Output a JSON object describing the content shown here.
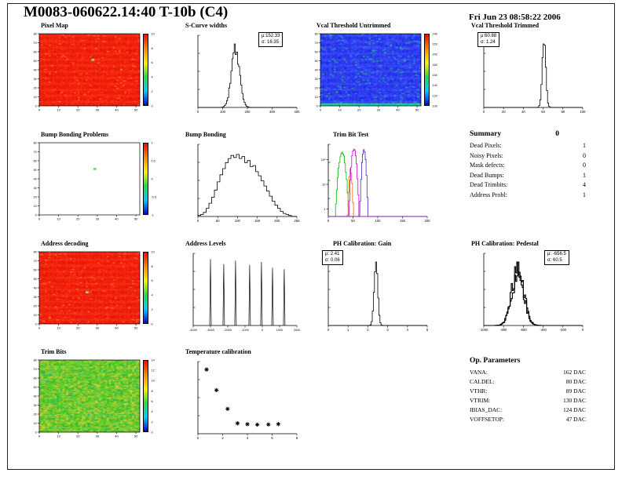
{
  "page": {
    "title": "M0083-060622.14:40 T-10b (C4)",
    "datetime": "Fri Jun 23 08:58:22 2006"
  },
  "summary": {
    "title": "Summary",
    "grade": "0",
    "rows": [
      {
        "label": "Dead Pixels:",
        "value": "1"
      },
      {
        "label": "Noisy Pixels:",
        "value": "0"
      },
      {
        "label": "Mask defects:",
        "value": "0"
      },
      {
        "label": "Dead Bumps:",
        "value": "1"
      },
      {
        "label": "Dead Trimbits:",
        "value": "4"
      },
      {
        "label": "Address Probl:",
        "value": "1"
      }
    ]
  },
  "op_parameters": {
    "title": "Op. Parameters",
    "rows": [
      {
        "label": "VANA:",
        "value": "162 DAC"
      },
      {
        "label": "CALDEL:",
        "value": "80 DAC"
      },
      {
        "label": "VTHR:",
        "value": "89 DAC"
      },
      {
        "label": "VTRIM:",
        "value": "130 DAC"
      },
      {
        "label": "IBIAS_DAC:",
        "value": "124 DAC"
      },
      {
        "label": "VOFFSETOP:",
        "value": "47 DAC"
      }
    ]
  },
  "chart_data": [
    {
      "id": "pixel-map",
      "type": "heatmap",
      "title": "Pixel Map",
      "grid": [
        52,
        80
      ],
      "x_ticks": [
        0,
        10,
        20,
        30,
        40,
        50
      ],
      "y_ticks": [
        0,
        10,
        20,
        30,
        40,
        50,
        60,
        70,
        80
      ],
      "palette": [
        {
          "color": "#f21b06",
          "w": 0.55
        },
        {
          "color": "#e41504",
          "w": 0.25
        },
        {
          "color": "#fb2d0a",
          "w": 0.18
        },
        {
          "color": "#ff7733",
          "w": 0.02
        }
      ],
      "defects": [
        {
          "col": 27,
          "row": 28,
          "color": "#88ffbb"
        }
      ],
      "colorbar": {
        "gradient": [
          "#ff0000",
          "#ff8800",
          "#ffee00",
          "#22dd44",
          "#00ccff",
          "#0000e0"
        ],
        "labels": [
          "0",
          "2",
          "4",
          "6",
          "8",
          "10"
        ]
      }
    },
    {
      "id": "scurve-widths",
      "type": "hist",
      "title": "S-Curve widths",
      "x_range": [
        0,
        400
      ],
      "x_ticks": [
        0,
        100,
        200,
        300,
        400
      ],
      "gauss": {
        "mean": 152.33,
        "sigma": 16.35
      },
      "stats": {
        "lines": [
          "μ:152.33",
          "σ: 16.35"
        ],
        "pos": "right"
      }
    },
    {
      "id": "vcal-untrimmed",
      "type": "heatmap",
      "title": "Vcal Threshold Untrimmed",
      "grid": [
        52,
        80
      ],
      "x_ticks": [
        0,
        10,
        20,
        30,
        40,
        50
      ],
      "y_ticks": [
        0,
        10,
        20,
        30,
        40,
        50,
        60,
        70,
        80
      ],
      "palette": [
        {
          "color": "#2a3af2",
          "w": 0.5
        },
        {
          "color": "#1c2ce4",
          "w": 0.28
        },
        {
          "color": "#3c4cfa",
          "w": 0.17
        },
        {
          "color": "#22bb66",
          "w": 0.03
        },
        {
          "color": "#18a8c8",
          "w": 0.02
        }
      ],
      "bottom_band": {
        "rows": 3,
        "palette": [
          {
            "color": "#17c9a4",
            "w": 0.5
          },
          {
            "color": "#2ad86e",
            "w": 0.3
          },
          {
            "color": "#1b9ede",
            "w": 0.2
          }
        ]
      },
      "colorbar": {
        "gradient": [
          "#ff0000",
          "#ff8800",
          "#ffee00",
          "#22dd44",
          "#00ccff",
          "#0000e0"
        ],
        "labels": [
          "100",
          "120",
          "140",
          "160",
          "180",
          "200",
          "220",
          "240"
        ]
      }
    },
    {
      "id": "vcal-trimmed",
      "type": "hist",
      "title": "Vcal Threshold Trimmed",
      "x_range": [
        0,
        100
      ],
      "x_ticks": [
        0,
        20,
        40,
        60,
        80,
        100
      ],
      "gauss": {
        "mean": 60.88,
        "sigma": 1.24
      },
      "stats": {
        "lines": [
          "μ:60.88",
          "σ: 1.24"
        ],
        "pos": "left"
      }
    },
    {
      "id": "bump-problems",
      "type": "heatmap",
      "title": "Bump Bonding Problems",
      "grid": [
        52,
        80
      ],
      "x_ticks": [
        0,
        10,
        20,
        30,
        40,
        50
      ],
      "y_ticks": [
        0,
        10,
        20,
        30,
        40,
        50,
        60,
        70,
        80
      ],
      "palette": [
        {
          "color": "#ffffff",
          "w": 1
        }
      ],
      "defects": [
        {
          "col": 28,
          "row": 28,
          "color": "#44cc44"
        }
      ],
      "colorbar": {
        "gradient": [
          "#ff0000",
          "#ff8800",
          "#ffee00",
          "#22dd44",
          "#00ccff",
          "#0000e0"
        ],
        "labels": [
          "-1",
          "-0.5",
          "0",
          "0.5",
          "1"
        ]
      }
    },
    {
      "id": "bump-bonding",
      "type": "hist-bins",
      "title": "Bump Bonding",
      "x_range": [
        0,
        250
      ],
      "x_ticks": [
        0,
        50,
        100,
        150,
        200,
        250
      ],
      "bins": [
        1,
        2,
        4,
        8,
        13,
        19,
        26,
        34,
        41,
        47,
        53,
        57,
        60,
        58,
        61,
        57,
        59,
        53,
        55,
        49,
        50,
        44,
        40,
        35,
        30,
        25,
        20,
        15,
        11,
        8,
        5,
        3,
        2,
        1,
        0,
        0
      ]
    },
    {
      "id": "trimbit-test",
      "type": "hist-multi-log",
      "title": "Trim Bit Test",
      "x_range": [
        0,
        200
      ],
      "x_ticks": [
        0,
        50,
        100,
        150,
        200
      ],
      "y_decades": [
        "1",
        "10",
        "10²"
      ],
      "series": [
        {
          "color": "#00bb00",
          "mean": 28,
          "sigma": 4.0,
          "amp": 200
        },
        {
          "color": "#ee6600",
          "mean": 45,
          "sigma": 2.0,
          "amp": 40
        },
        {
          "color": "#cc00cc",
          "mean": 52,
          "sigma": 3.0,
          "amp": 300
        },
        {
          "color": "#5522bb",
          "mean": 72,
          "sigma": 2.4,
          "amp": 260
        }
      ]
    },
    {
      "id": "address-decoding",
      "type": "heatmap",
      "title": "Address decoding",
      "grid": [
        52,
        80
      ],
      "x_ticks": [
        0,
        10,
        20,
        30,
        40,
        50
      ],
      "y_ticks": [
        0,
        10,
        20,
        30,
        40,
        50,
        60,
        70,
        80
      ],
      "palette": [
        {
          "color": "#f21b06",
          "w": 0.55
        },
        {
          "color": "#e41504",
          "w": 0.25
        },
        {
          "color": "#fb2d0a",
          "w": 0.18
        },
        {
          "color": "#ff7733",
          "w": 0.02
        }
      ],
      "defects": [
        {
          "col": 24,
          "row": 44,
          "color": "#88ffbb"
        }
      ],
      "colorbar": {
        "gradient": [
          "#ff0000",
          "#ff8800",
          "#ffee00",
          "#22dd44",
          "#00ccff",
          "#0000e0"
        ],
        "labels": [
          "0",
          "2",
          "4",
          "6",
          "8",
          "10"
        ]
      }
    },
    {
      "id": "address-levels",
      "type": "spikes",
      "title": "Address Levels",
      "x_range": [
        -4000,
        2000
      ],
      "x_ticks": [
        -4000,
        -3000,
        -2000,
        -1000,
        0,
        1000,
        2000
      ],
      "spikes": [
        [
          -3000,
          0.92
        ],
        [
          -2230,
          0.85
        ],
        [
          -1550,
          0.9
        ],
        [
          -730,
          0.84
        ],
        [
          -50,
          0.88
        ],
        [
          590,
          0.8
        ],
        [
          1270,
          0.78
        ]
      ]
    },
    {
      "id": "ph-gain",
      "type": "hist",
      "title": "PH Calibration: Gain",
      "x_range": [
        0,
        5
      ],
      "x_ticks": [
        0,
        1,
        2,
        3,
        4,
        5
      ],
      "gauss": {
        "mean": 2.41,
        "sigma": 0.06
      },
      "stats": {
        "lines": [
          "μ: 2.41",
          "σ: 0.06"
        ],
        "pos": "left"
      }
    },
    {
      "id": "ph-pedestal",
      "type": "hist",
      "title": "PH Calibration: Pedestal",
      "noisy": true,
      "x_range": [
        -1000,
        0
      ],
      "x_ticks": [
        -1000,
        -800,
        -600,
        -400,
        -200,
        0
      ],
      "gauss": {
        "mean": -656.5,
        "sigma": 60.5
      },
      "stats": {
        "lines": [
          "μ: -656.5",
          "σ: 60.5"
        ],
        "pos": "right"
      }
    },
    {
      "id": "trim-bits",
      "type": "heatmap",
      "title": "Trim Bits",
      "grid": [
        52,
        80
      ],
      "x_ticks": [
        0,
        10,
        20,
        30,
        40,
        50
      ],
      "y_ticks": [
        0,
        10,
        20,
        30,
        40,
        50,
        60,
        70,
        80
      ],
      "palette": [
        {
          "color": "#3cbf1e",
          "w": 0.22
        },
        {
          "color": "#54cc22",
          "w": 0.2
        },
        {
          "color": "#74cc28",
          "w": 0.16
        },
        {
          "color": "#95cc2e",
          "w": 0.12
        },
        {
          "color": "#b8cc33",
          "w": 0.09
        },
        {
          "color": "#dbcf38",
          "w": 0.07
        },
        {
          "color": "#2dae35",
          "w": 0.06
        },
        {
          "color": "#25bf6a",
          "w": 0.04
        },
        {
          "color": "#f2a52e",
          "w": 0.02
        },
        {
          "color": "#28c9a0",
          "w": 0.02
        }
      ],
      "colorbar": {
        "gradient": [
          "#ff0000",
          "#ff8800",
          "#ffee00",
          "#22dd44",
          "#00ccff",
          "#0000e0"
        ],
        "labels": [
          "0",
          "2",
          "4",
          "6",
          "8",
          "10",
          "12",
          "14"
        ]
      }
    },
    {
      "id": "temp-cal",
      "type": "scatter",
      "title": "Temperature calibration",
      "x_range": [
        0,
        8
      ],
      "x_ticks": [
        0,
        2,
        4,
        6,
        8
      ],
      "y_range": [
        0,
        500
      ],
      "points": [
        [
          0.7,
          445
        ],
        [
          1.5,
          302
        ],
        [
          2.4,
          172
        ],
        [
          3.2,
          72
        ],
        [
          4.0,
          66
        ],
        [
          4.8,
          63
        ],
        [
          5.7,
          64
        ],
        [
          6.5,
          67
        ]
      ]
    }
  ]
}
